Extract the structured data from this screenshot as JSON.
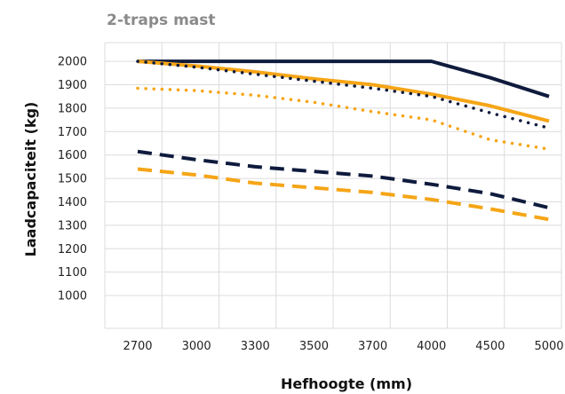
{
  "chart_data": {
    "type": "line",
    "title": "2-traps mast",
    "xlabel": "Hefhoogte (mm)",
    "ylabel": "Laadcapaciteit (kg)",
    "categories": [
      "2700",
      "3000",
      "3300",
      "3500",
      "3700",
      "4000",
      "4500",
      "5000"
    ],
    "yticks": [
      1000,
      1100,
      1200,
      1300,
      1400,
      1500,
      1600,
      1700,
      1800,
      1900,
      2000
    ],
    "ylim": [
      860,
      2080
    ],
    "grid": true,
    "colors": {
      "navy": "#0f1b3d",
      "amber": "#f5a516"
    },
    "series": [
      {
        "color": "navy",
        "style": "solid",
        "values": [
          2000,
          2000,
          2000,
          2000,
          2000,
          2000,
          1930,
          1850
        ]
      },
      {
        "color": "amber",
        "style": "solid",
        "values": [
          2000,
          1980,
          1955,
          1925,
          1900,
          1860,
          1810,
          1745
        ]
      },
      {
        "color": "navy",
        "style": "dotted",
        "values": [
          2000,
          1975,
          1945,
          1915,
          1885,
          1850,
          1780,
          1715
        ]
      },
      {
        "color": "amber",
        "style": "dotted",
        "values": [
          1885,
          1875,
          1855,
          1825,
          1785,
          1750,
          1665,
          1625
        ]
      },
      {
        "color": "navy",
        "style": "dashed",
        "values": [
          1615,
          1580,
          1550,
          1530,
          1510,
          1475,
          1435,
          1375
        ]
      },
      {
        "color": "amber",
        "style": "dashed",
        "values": [
          1540,
          1515,
          1480,
          1460,
          1440,
          1410,
          1370,
          1325
        ]
      }
    ]
  }
}
